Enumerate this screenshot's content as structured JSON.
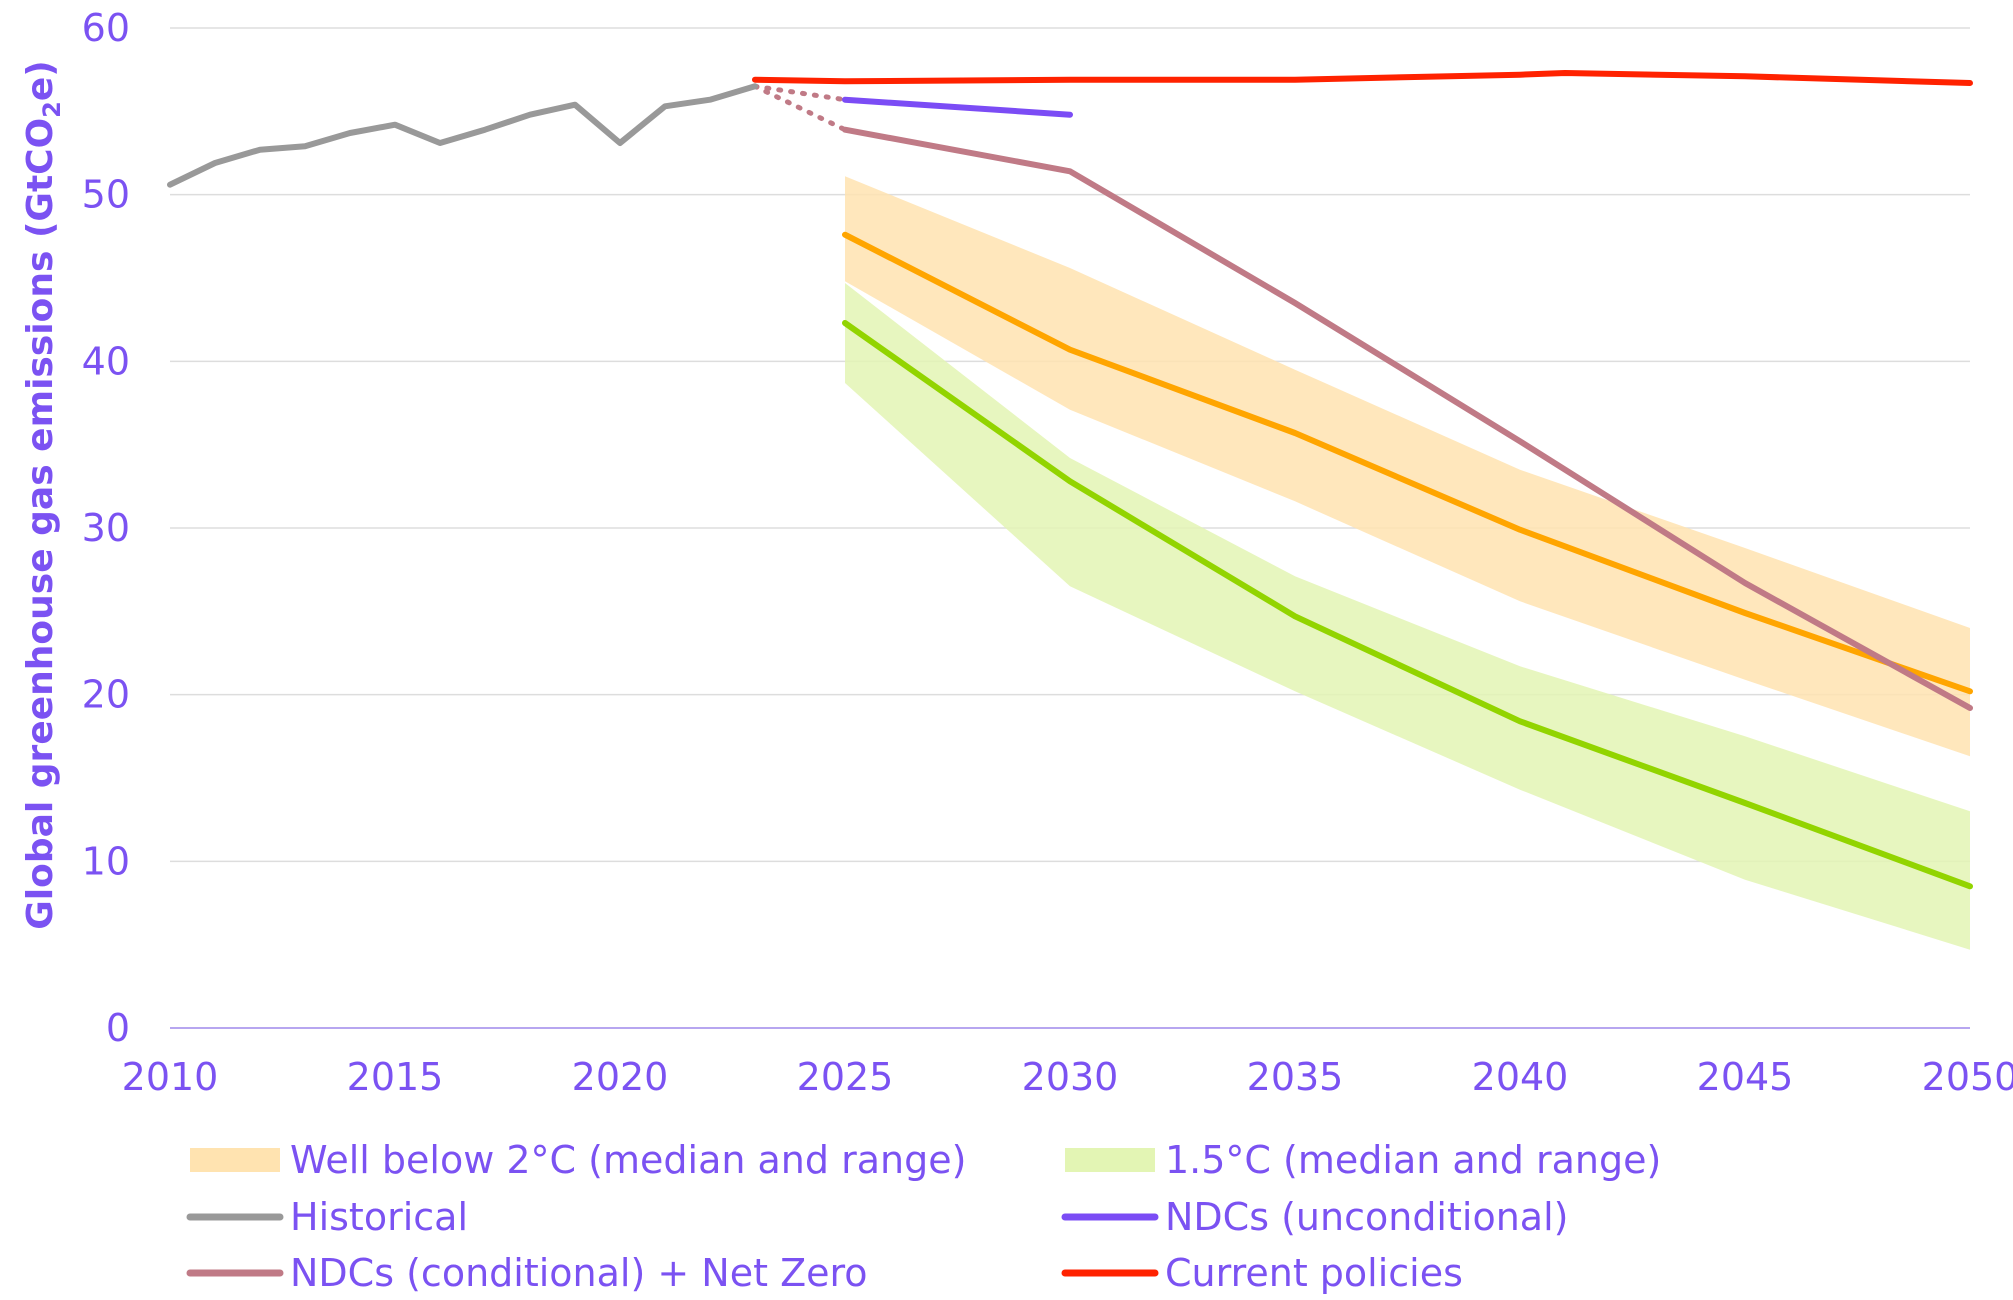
{
  "chart_data": {
    "type": "line",
    "ylabel": "Global greenhouse gas emissions (GtCO₂e)",
    "ylabel_parts": {
      "main": "Global greenhouse gas emissions (GtCO",
      "sub": "2",
      "end": "e)"
    },
    "xlim": [
      2010,
      2050
    ],
    "ylim": [
      0,
      60
    ],
    "x_ticks": [
      2010,
      2015,
      2020,
      2025,
      2030,
      2035,
      2040,
      2045,
      2050
    ],
    "y_ticks": [
      0,
      10,
      20,
      30,
      40,
      50,
      60
    ],
    "grid": "horizontal",
    "legend_position": "bottom",
    "series": [
      {
        "name": "Historical",
        "color": "#999999",
        "x": [
          2010,
          2011,
          2012,
          2013,
          2014,
          2015,
          2016,
          2017,
          2018,
          2019,
          2020,
          2021,
          2022,
          2023
        ],
        "y": [
          50.6,
          51.9,
          52.7,
          52.9,
          53.7,
          54.2,
          53.1,
          53.9,
          54.8,
          55.4,
          53.1,
          55.3,
          55.7,
          56.5
        ]
      },
      {
        "name": "NDCs (unconditional)",
        "color": "#7b4cf5",
        "x": [
          2025,
          2030
        ],
        "y": [
          55.7,
          54.8
        ],
        "connector": {
          "color": "#c07a86",
          "x": [
            2023,
            2025
          ],
          "y": [
            56.5,
            55.7
          ]
        }
      },
      {
        "name": "NDCs (conditional) + Net Zero",
        "color": "#c07a86",
        "x": [
          2025,
          2030,
          2035,
          2040,
          2045,
          2050
        ],
        "y": [
          53.9,
          51.4,
          43.5,
          35.2,
          26.7,
          19.2
        ],
        "connector": {
          "color": "#c07a86",
          "x": [
            2023,
            2025
          ],
          "y": [
            56.5,
            53.9
          ]
        }
      },
      {
        "name": "Current policies",
        "color": "#ff2200",
        "x": [
          2023,
          2025,
          2030,
          2035,
          2040,
          2041,
          2045,
          2050
        ],
        "y": [
          56.9,
          56.8,
          56.9,
          56.9,
          57.2,
          57.3,
          57.1,
          56.7
        ]
      }
    ],
    "bands": [
      {
        "name": "Well below 2°C (median and range)",
        "fill": "#ffe3b0",
        "line": "#ffa500",
        "x": [
          2025,
          2030,
          2035,
          2040,
          2045,
          2050
        ],
        "median": [
          47.6,
          40.7,
          35.7,
          29.9,
          24.9,
          20.2
        ],
        "low": [
          44.8,
          37.1,
          31.6,
          25.6,
          20.9,
          16.3
        ],
        "high": [
          51.1,
          45.6,
          39.5,
          33.5,
          28.8,
          24.0
        ]
      },
      {
        "name": "1.5°C (median and range)",
        "fill": "#e3f5b4",
        "line": "#92d400",
        "x": [
          2025,
          2030,
          2035,
          2040,
          2045,
          2050
        ],
        "median": [
          42.3,
          32.8,
          24.7,
          18.4,
          13.5,
          8.5
        ],
        "low": [
          38.7,
          26.5,
          20.2,
          14.3,
          8.9,
          4.7
        ],
        "high": [
          44.7,
          34.2,
          27.1,
          21.7,
          17.5,
          13.0
        ]
      }
    ],
    "legend": [
      {
        "label": "Well below 2°C (median and range)",
        "kind": "band",
        "color": "#ffe3b0"
      },
      {
        "label": "1.5°C (median and range)",
        "kind": "band",
        "color": "#e3f5b4"
      },
      {
        "label": "Historical",
        "kind": "line",
        "color": "#999999"
      },
      {
        "label": "NDCs (unconditional)",
        "kind": "line",
        "color": "#7b4cf5"
      },
      {
        "label": "NDCs (conditional) + Net Zero",
        "kind": "line",
        "color": "#c07a86"
      },
      {
        "label": "Current policies",
        "kind": "line",
        "color": "#ff2200"
      }
    ]
  }
}
